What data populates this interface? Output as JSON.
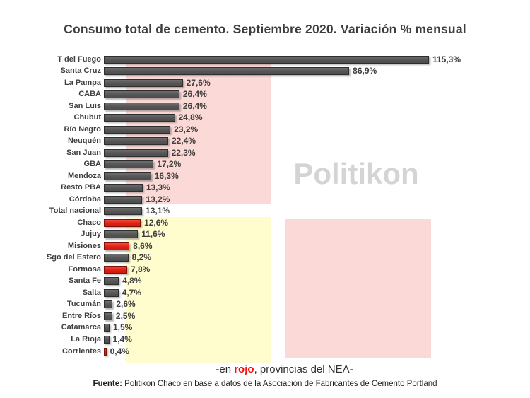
{
  "watermark": "Politikon",
  "chart_data": {
    "type": "bar",
    "orientation": "horizontal",
    "title": "Consumo total de cemento. Septiembre 2020. Variación % mensual",
    "value_unit": "%",
    "xlim": [
      0,
      120
    ],
    "grid": false,
    "legend": false,
    "bar_color": "#5c5c5c",
    "nea_bar_color": "#e8251b",
    "highlight_note": "red bars = NEA provinces",
    "background_regions": {
      "pink_color": "#fbd9d6",
      "yellow_color": "#fffcce"
    },
    "rows": [
      {
        "category": "T del Fuego",
        "value": 115.3,
        "label": "115,3%",
        "nea": false
      },
      {
        "category": "Santa Cruz",
        "value": 86.9,
        "label": "86,9%",
        "nea": false
      },
      {
        "category": "La Pampa",
        "value": 27.6,
        "label": "27,6%",
        "nea": false
      },
      {
        "category": "CABA",
        "value": 26.4,
        "label": "26,4%",
        "nea": false
      },
      {
        "category": "San Luis",
        "value": 26.4,
        "label": "26,4%",
        "nea": false
      },
      {
        "category": "Chubut",
        "value": 24.8,
        "label": "24,8%",
        "nea": false
      },
      {
        "category": "Río Negro",
        "value": 23.2,
        "label": "23,2%",
        "nea": false
      },
      {
        "category": "Neuquén",
        "value": 22.4,
        "label": "22,4%",
        "nea": false
      },
      {
        "category": "San Juan",
        "value": 22.3,
        "label": "22,3%",
        "nea": false
      },
      {
        "category": "GBA",
        "value": 17.2,
        "label": "17,2%",
        "nea": false
      },
      {
        "category": "Mendoza",
        "value": 16.3,
        "label": "16,3%",
        "nea": false
      },
      {
        "category": "Resto PBA",
        "value": 13.3,
        "label": "13,3%",
        "nea": false
      },
      {
        "category": "Córdoba",
        "value": 13.2,
        "label": "13,2%",
        "nea": false
      },
      {
        "category": "Total nacional",
        "value": 13.1,
        "label": "13,1%",
        "nea": false
      },
      {
        "category": "Chaco",
        "value": 12.6,
        "label": "12,6%",
        "nea": true
      },
      {
        "category": "Jujuy",
        "value": 11.6,
        "label": "11,6%",
        "nea": false
      },
      {
        "category": "Misiones",
        "value": 8.6,
        "label": "8,6%",
        "nea": true
      },
      {
        "category": "Sgo del Estero",
        "value": 8.2,
        "label": "8,2%",
        "nea": false
      },
      {
        "category": "Formosa",
        "value": 7.8,
        "label": "7,8%",
        "nea": true
      },
      {
        "category": "Santa Fe",
        "value": 4.8,
        "label": "4,8%",
        "nea": false
      },
      {
        "category": "Salta",
        "value": 4.7,
        "label": "4,7%",
        "nea": false
      },
      {
        "category": "Tucumán",
        "value": 2.6,
        "label": "2,6%",
        "nea": false
      },
      {
        "category": "Entre Ríos",
        "value": 2.5,
        "label": "2,5%",
        "nea": false
      },
      {
        "category": "Catamarca",
        "value": 1.5,
        "label": "1,5%",
        "nea": false
      },
      {
        "category": "La Rioja",
        "value": 1.4,
        "label": "1,4%",
        "nea": false
      },
      {
        "category": "Corrientes",
        "value": 0.4,
        "label": "0,4%",
        "nea": true
      }
    ]
  },
  "footer": {
    "note_prefix": "-en ",
    "note_red": "rojo",
    "note_suffix": ", provincias del NEA-",
    "source_label": "Fuente:",
    "source_text": " Politikon Chaco en base a datos de la Asociación de Fabricantes de Cemento Portland"
  }
}
